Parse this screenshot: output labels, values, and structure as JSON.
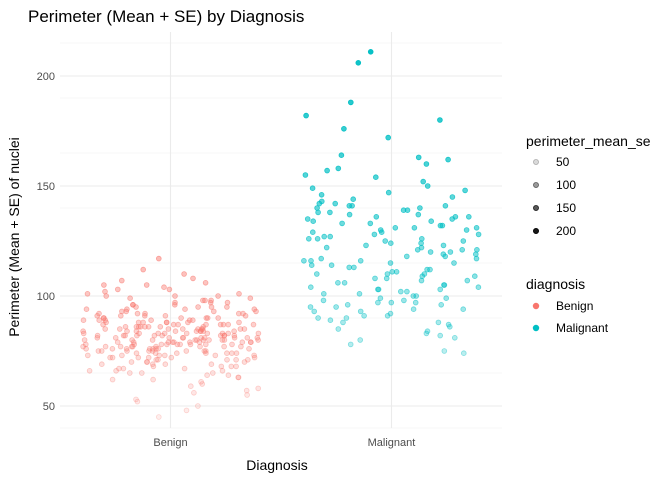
{
  "chart_data": {
    "type": "scatter",
    "title": "Perimeter (Mean + SE) by Diagnosis",
    "xlabel": "Diagnosis",
    "ylabel": "Perimeter (Mean + SE) of nuclei",
    "categories": [
      "Benign",
      "Malignant"
    ],
    "ylim": [
      40,
      220
    ],
    "yticks": [
      50,
      100,
      150,
      200
    ],
    "grid": true,
    "jitter": true,
    "legend_placement": "right",
    "legends": {
      "alpha": {
        "title": "perimeter_mean_se",
        "entries": [
          {
            "label": "50",
            "value": 50
          },
          {
            "label": "100",
            "value": 100
          },
          {
            "label": "150",
            "value": 150
          },
          {
            "label": "200",
            "value": 200
          }
        ]
      },
      "color": {
        "title": "diagnosis",
        "entries": [
          {
            "label": "Benign",
            "color": "#F8766D"
          },
          {
            "label": "Malignant",
            "color": "#00BFC4"
          }
        ]
      }
    },
    "series": [
      {
        "name": "Benign",
        "color": "#F8766D",
        "values": [
          50,
          53,
          56,
          58,
          60,
          61,
          62,
          63,
          64,
          64,
          65,
          65,
          66,
          66,
          67,
          67,
          67,
          68,
          68,
          68,
          69,
          69,
          69,
          70,
          70,
          70,
          70,
          71,
          71,
          71,
          71,
          72,
          72,
          72,
          72,
          72,
          73,
          73,
          73,
          73,
          73,
          74,
          74,
          74,
          74,
          74,
          74,
          75,
          75,
          75,
          75,
          75,
          75,
          75,
          76,
          76,
          76,
          76,
          76,
          76,
          76,
          77,
          77,
          77,
          77,
          77,
          77,
          77,
          77,
          78,
          78,
          78,
          78,
          78,
          78,
          78,
          78,
          79,
          79,
          79,
          79,
          79,
          79,
          79,
          79,
          79,
          80,
          80,
          80,
          80,
          80,
          80,
          80,
          80,
          80,
          81,
          81,
          81,
          81,
          81,
          81,
          81,
          81,
          81,
          82,
          82,
          82,
          82,
          82,
          82,
          82,
          82,
          82,
          83,
          83,
          83,
          83,
          83,
          83,
          83,
          83,
          84,
          84,
          84,
          84,
          84,
          84,
          84,
          84,
          85,
          85,
          85,
          85,
          85,
          85,
          85,
          85,
          86,
          86,
          86,
          86,
          86,
          86,
          86,
          87,
          87,
          87,
          87,
          87,
          87,
          87,
          88,
          88,
          88,
          88,
          88,
          88,
          89,
          89,
          89,
          89,
          89,
          90,
          90,
          90,
          90,
          90,
          91,
          91,
          91,
          91,
          92,
          92,
          92,
          92,
          93,
          93,
          93,
          94,
          94,
          94,
          95,
          95,
          95,
          96,
          96,
          97,
          97,
          98,
          98,
          99,
          100,
          100,
          101,
          102,
          103,
          104,
          105,
          106,
          108,
          110,
          112,
          117,
          45,
          48,
          52,
          55,
          57,
          59,
          62,
          63,
          65,
          66,
          68,
          69,
          71,
          72,
          73,
          74,
          75,
          76,
          77,
          78,
          79,
          80,
          81,
          82,
          83,
          84,
          85,
          86,
          87,
          88,
          89,
          90,
          91,
          92,
          93,
          94,
          95,
          96,
          97,
          98,
          99,
          100,
          101,
          103,
          105,
          107
        ]
      },
      {
        "name": "Malignant",
        "color": "#00BFC4",
        "values": [
          74,
          75,
          78,
          80,
          81,
          82,
          83,
          84,
          85,
          86,
          87,
          88,
          88,
          89,
          90,
          90,
          91,
          91,
          92,
          93,
          93,
          94,
          94,
          95,
          95,
          96,
          96,
          97,
          97,
          98,
          98,
          99,
          99,
          100,
          100,
          101,
          101,
          102,
          102,
          103,
          103,
          104,
          104,
          105,
          105,
          106,
          106,
          107,
          107,
          108,
          108,
          109,
          109,
          110,
          110,
          111,
          111,
          112,
          112,
          113,
          113,
          114,
          114,
          115,
          115,
          116,
          116,
          117,
          117,
          118,
          118,
          119,
          119,
          120,
          120,
          121,
          121,
          122,
          122,
          123,
          123,
          124,
          124,
          125,
          125,
          126,
          126,
          127,
          127,
          128,
          128,
          129,
          129,
          130,
          130,
          131,
          131,
          132,
          132,
          133,
          133,
          134,
          134,
          135,
          135,
          136,
          136,
          137,
          137,
          138,
          138,
          139,
          139,
          140,
          140,
          141,
          141,
          142,
          142,
          143,
          144,
          145,
          146,
          147,
          148,
          149,
          150,
          152,
          154,
          155,
          157,
          158,
          160,
          162,
          163,
          164,
          172,
          176,
          180,
          182,
          188,
          206,
          211,
          97,
          103,
          110,
          116,
          121,
          126,
          131,
          136,
          141
        ]
      }
    ]
  }
}
